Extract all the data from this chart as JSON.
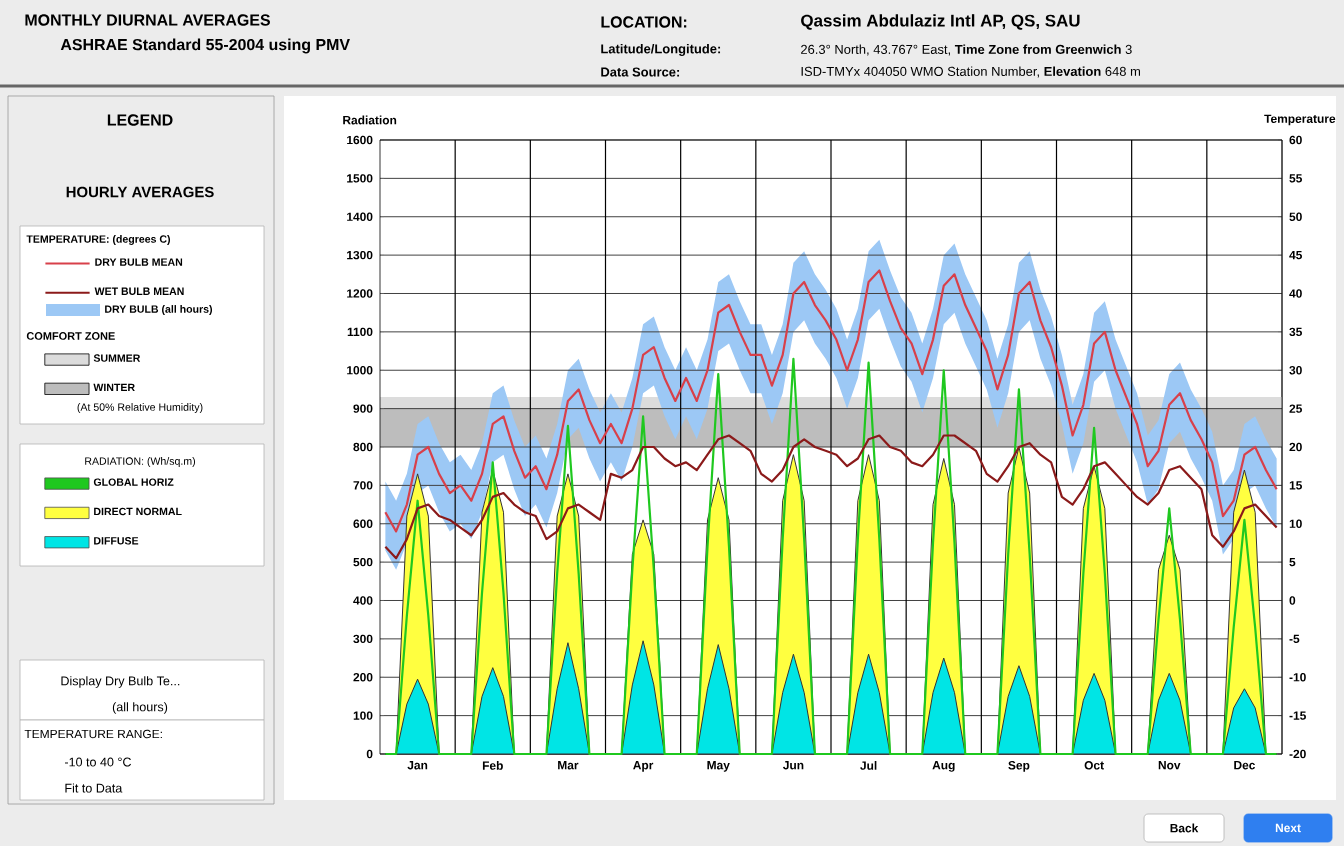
{
  "chart_data": {
    "type": "area",
    "title": "MONTHLY DIURNAL AVERAGES",
    "subtitle": "ASHRAE Standard 55-2004 using PMV",
    "ylabel": "Radiation",
    "y2label": "Temperature",
    "legend_title": "LEGEND",
    "annotations": [
      "LOCATION:",
      "Qassim Abdulaziz Intl AP, QS, SAU",
      "Latitude/Longitude:",
      "26.3° North, 43.767° East, **Time Zone from Greenwich** 3",
      "Data Source:",
      "ISD-TMYx 404050 WMO Station Number, **Elevation** 648 m",
      "HOURLY AVERAGES",
      "TEMPERATURE: (degrees C)",
      "COMFORT ZONE",
      "(At 50% Relative Humidity)",
      "RADIATION: (Wh/sq.m)",
      "DRY BULB (all hours)",
      "Display Dry Bulb Te...",
      "(all hours)",
      "TEMPERATURE RANGE:",
      "-10 to 40 °C",
      "Fit to Data",
      "Back",
      "Next"
    ],
    "categories": [
      null,
      null,
      null,
      "Jan",
      null,
      null,
      null,
      null,
      null,
      null,
      "Feb",
      null,
      null,
      null,
      null,
      null,
      null,
      "Mar",
      null,
      null,
      null,
      null,
      null,
      null,
      "Apr",
      null,
      null,
      null,
      null,
      null,
      null,
      "May",
      null,
      null,
      null,
      null,
      null,
      null,
      "Jun",
      null,
      null,
      null,
      null,
      null,
      null,
      "Jul",
      null,
      null,
      null,
      null,
      null,
      null,
      "Aug",
      null,
      null,
      null,
      null,
      null,
      null,
      "Sep",
      null,
      null,
      null,
      null,
      null,
      null,
      "Oct",
      null,
      null,
      null,
      null,
      null,
      null,
      "Nov",
      null,
      null,
      null,
      null,
      null,
      null,
      "Dec",
      null,
      null,
      null
    ],
    "ylim": [
      0,
      1600
    ],
    "yticks": [
      0,
      100,
      200,
      300,
      400,
      500,
      600,
      700,
      800,
      900,
      1000,
      1100,
      1200,
      1300,
      1400,
      1500,
      1600
    ],
    "y2lim": [
      -20,
      60
    ],
    "y2ticks": [
      -20,
      -15,
      -10,
      -5,
      0,
      5,
      10,
      15,
      20,
      25,
      30,
      35,
      40,
      45,
      50,
      55,
      60
    ],
    "grid": "y",
    "legend": "left",
    "bands": [
      {
        "axis": "y2",
        "from": 20,
        "to": 26.5,
        "label": "SUMMER",
        "color": "#dcdcdc"
      },
      {
        "axis": "y2",
        "from": 20,
        "to": 25,
        "label": "WINTER",
        "color": "#bdbdbd"
      }
    ],
    "series": [
      {
        "name": "DRY BULB MEAN",
        "type": "line",
        "axis": "y2",
        "color": "#d8404a",
        "values": [
          11.5,
          9,
          12.5,
          19,
          20,
          16.5,
          14,
          15,
          13,
          16.5,
          23,
          24,
          19.5,
          16,
          17.5,
          14.5,
          19,
          26,
          27.5,
          23.5,
          20.5,
          23,
          20.5,
          25,
          32,
          33,
          29,
          26,
          29,
          26,
          30,
          37.5,
          38.5,
          35,
          32,
          32,
          28,
          32,
          40,
          41.5,
          38.5,
          36.5,
          34,
          30,
          34,
          41.5,
          43,
          39,
          35.5,
          33.5,
          29.5,
          34,
          41,
          42.5,
          38.5,
          35.5,
          32.5,
          27.5,
          32,
          40,
          41.5,
          36.5,
          33,
          28,
          21.5,
          25.5,
          33.5,
          35,
          30,
          26.5,
          23,
          17.5,
          19.5,
          25.5,
          27,
          23.5,
          21,
          18,
          11,
          13,
          19,
          20,
          17,
          14.5
        ],
        "upper": [
          15.5,
          13,
          16.5,
          23,
          24,
          20.5,
          18,
          19,
          17,
          20.5,
          27,
          28,
          23.5,
          20,
          21.5,
          18.5,
          23,
          30,
          31.5,
          27.5,
          24.5,
          27,
          24.5,
          29,
          36,
          37,
          33,
          30,
          33,
          30,
          34,
          41.5,
          42.5,
          39,
          36,
          36,
          32,
          36,
          44,
          45.5,
          42.5,
          40.5,
          38,
          34,
          38,
          45.5,
          47,
          43,
          39.5,
          37.5,
          33.5,
          38,
          45,
          46.5,
          42.5,
          39.5,
          36.5,
          31.5,
          36,
          44,
          45.5,
          40.5,
          37,
          32,
          25.5,
          29.5,
          37.5,
          39,
          34,
          30.5,
          27,
          21.5,
          23.5,
          29.5,
          31,
          27.5,
          25,
          22,
          15,
          17,
          23,
          24,
          21,
          18.5
        ],
        "lower": [
          6.5,
          4,
          7.5,
          14,
          15,
          11.5,
          9,
          10,
          8,
          11.5,
          18,
          19,
          14.5,
          11,
          12.5,
          9.5,
          14,
          21,
          22.5,
          18.5,
          15.5,
          18,
          15.5,
          20,
          27,
          28,
          24,
          21,
          24,
          21,
          25,
          32.5,
          33.5,
          30,
          27,
          27,
          23,
          27,
          35,
          36.5,
          33.5,
          31.5,
          29,
          25,
          29,
          36.5,
          38,
          34,
          30.5,
          28.5,
          24.5,
          29,
          36,
          37.5,
          33.5,
          30.5,
          27.5,
          22.5,
          27,
          35,
          36.5,
          31.5,
          28,
          23,
          16.5,
          20.5,
          28.5,
          30,
          25,
          21.5,
          18,
          12.5,
          14.5,
          20.5,
          22,
          18.5,
          16,
          13,
          6,
          8,
          14,
          15,
          12,
          9.5
        ]
      },
      {
        "name": "WET BULB MEAN",
        "type": "line",
        "axis": "y2",
        "color": "#8b1a1a",
        "values": [
          7,
          5.5,
          8,
          12,
          12.5,
          11,
          10.5,
          9.5,
          8.5,
          10.5,
          13.5,
          14,
          12.5,
          11.5,
          11,
          8,
          9,
          12,
          12.5,
          11.5,
          10.5,
          16.5,
          16,
          17,
          20,
          20,
          18.5,
          17.5,
          18,
          17,
          19,
          21,
          21.5,
          20.5,
          19.5,
          16.5,
          15.5,
          17,
          20,
          21,
          20,
          19.5,
          19,
          17.5,
          18.5,
          21,
          21.5,
          20,
          19.5,
          18,
          17.5,
          19,
          21.5,
          21.5,
          20.5,
          19.5,
          16.5,
          15.5,
          17.5,
          20,
          20.5,
          19,
          18,
          13.5,
          12.5,
          14.5,
          17.5,
          18,
          16.5,
          15,
          13.5,
          12.5,
          14,
          17,
          17.5,
          16,
          14.5,
          8.5,
          7,
          9,
          12,
          12.5,
          11,
          9.5
        ]
      },
      {
        "name": "GLOBAL HORIZ",
        "type": "line",
        "color": "#1fc81f",
        "values": [
          0,
          0,
          360,
          660,
          360,
          0,
          0,
          0,
          0,
          420,
          760,
          420,
          0,
          0,
          0,
          0,
          470,
          855,
          470,
          0,
          0,
          0,
          0,
          480,
          880,
          480,
          0,
          0,
          0,
          0,
          540,
          990,
          540,
          0,
          0,
          0,
          0,
          560,
          1030,
          560,
          0,
          0,
          0,
          0,
          560,
          1020,
          560,
          0,
          0,
          0,
          0,
          550,
          1000,
          550,
          0,
          0,
          0,
          0,
          520,
          950,
          520,
          0,
          0,
          0,
          0,
          470,
          850,
          470,
          0,
          0,
          0,
          0,
          350,
          640,
          350,
          0,
          0,
          0,
          0,
          330,
          610,
          330,
          0,
          0
        ]
      },
      {
        "name": "DIRECT NORMAL",
        "color": "#ffff40",
        "values": [
          0,
          0,
          620,
          730,
          620,
          0,
          0,
          0,
          0,
          630,
          740,
          630,
          0,
          0,
          0,
          0,
          620,
          730,
          620,
          0,
          0,
          0,
          0,
          520,
          610,
          520,
          0,
          0,
          0,
          0,
          610,
          720,
          610,
          0,
          0,
          0,
          0,
          660,
          780,
          660,
          0,
          0,
          0,
          0,
          660,
          780,
          660,
          0,
          0,
          0,
          0,
          650,
          770,
          650,
          0,
          0,
          0,
          0,
          680,
          800,
          680,
          0,
          0,
          0,
          0,
          640,
          750,
          640,
          0,
          0,
          0,
          0,
          480,
          570,
          480,
          0,
          0,
          0,
          0,
          630,
          740,
          630,
          0,
          0
        ]
      },
      {
        "name": "DIFFUSE",
        "color": "#00e5e5",
        "values": [
          0,
          0,
          130,
          195,
          130,
          0,
          0,
          0,
          0,
          150,
          225,
          150,
          0,
          0,
          0,
          0,
          170,
          290,
          170,
          0,
          0,
          0,
          0,
          180,
          295,
          180,
          0,
          0,
          0,
          0,
          170,
          285,
          170,
          0,
          0,
          0,
          0,
          160,
          260,
          160,
          0,
          0,
          0,
          0,
          160,
          260,
          160,
          0,
          0,
          0,
          0,
          160,
          250,
          160,
          0,
          0,
          0,
          0,
          150,
          230,
          150,
          0,
          0,
          0,
          0,
          140,
          210,
          140,
          0,
          0,
          0,
          0,
          140,
          210,
          140,
          0,
          0,
          0,
          0,
          120,
          170,
          120,
          0,
          0
        ]
      }
    ]
  }
}
